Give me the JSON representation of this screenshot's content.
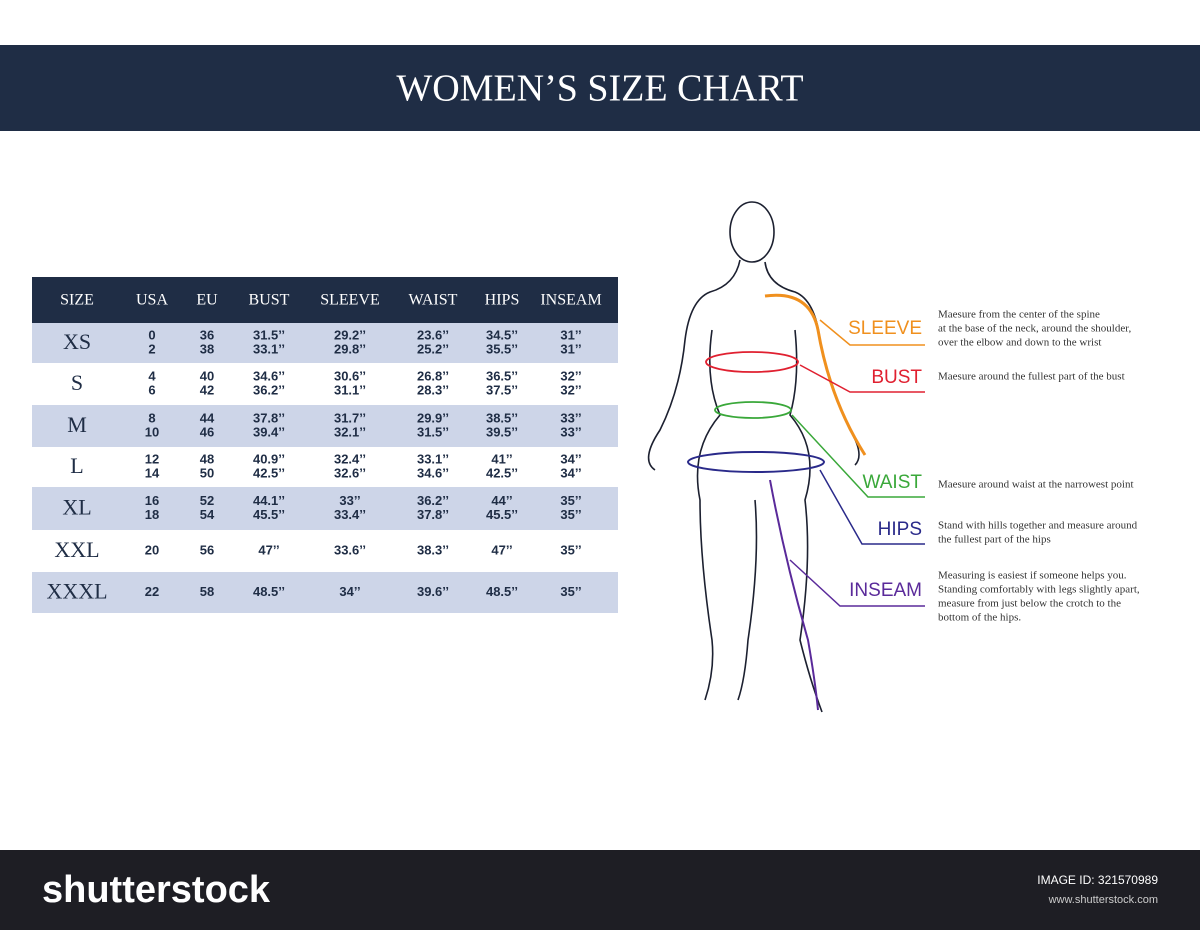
{
  "header": {
    "title": "WOMEN’S SIZE CHART"
  },
  "table": {
    "columns": [
      "SIZE",
      "USA",
      "EU",
      "BUST",
      "SLEEVE",
      "WAIST",
      "HIPS",
      "INSEAM"
    ],
    "rows": [
      {
        "size": "XS",
        "cells": [
          [
            "0",
            "2"
          ],
          [
            "36",
            "38"
          ],
          [
            "31.5’’",
            "33.1’’"
          ],
          [
            "29.2’’",
            "29.8’’"
          ],
          [
            "23.6’’",
            "25.2’’"
          ],
          [
            "34.5’’",
            "35.5’’"
          ],
          [
            "31’’",
            "31’’"
          ]
        ]
      },
      {
        "size": "S",
        "cells": [
          [
            "4",
            "6"
          ],
          [
            "40",
            "42"
          ],
          [
            "34.6’’",
            "36.2’’"
          ],
          [
            "30.6’’",
            "31.1’’"
          ],
          [
            "26.8’’",
            "28.3’’"
          ],
          [
            "36.5’’",
            "37.5’’"
          ],
          [
            "32’’",
            "32’’"
          ]
        ]
      },
      {
        "size": "M",
        "cells": [
          [
            "8",
            "10"
          ],
          [
            "44",
            "46"
          ],
          [
            "37.8’’",
            "39.4’’"
          ],
          [
            "31.7’’",
            "32.1’’"
          ],
          [
            "29.9’’",
            "31.5’’"
          ],
          [
            "38.5’’",
            "39.5’’"
          ],
          [
            "33’’",
            "33’’"
          ]
        ]
      },
      {
        "size": "L",
        "cells": [
          [
            "12",
            "14"
          ],
          [
            "48",
            "50"
          ],
          [
            "40.9’’",
            "42.5’’"
          ],
          [
            "32.4’’",
            "32.6’’"
          ],
          [
            "33.1’’",
            "34.6’’"
          ],
          [
            "41’’",
            "42.5’’"
          ],
          [
            "34’’",
            "34’’"
          ]
        ]
      },
      {
        "size": "XL",
        "cells": [
          [
            "16",
            "18"
          ],
          [
            "52",
            "54"
          ],
          [
            "44.1’’",
            "45.5’’"
          ],
          [
            "33’’",
            "33.4’’"
          ],
          [
            "36.2’’",
            "37.8’’"
          ],
          [
            "44’’",
            "45.5’’"
          ],
          [
            "35’’",
            "35’’"
          ]
        ]
      },
      {
        "size": "XXL",
        "cells": [
          [
            "20"
          ],
          [
            "56"
          ],
          [
            "47’’"
          ],
          [
            "33.6’’"
          ],
          [
            "38.3’’"
          ],
          [
            "47’’"
          ],
          [
            "35’’"
          ]
        ]
      },
      {
        "size": "XXXL",
        "cells": [
          [
            "22"
          ],
          [
            "58"
          ],
          [
            "48.5’’"
          ],
          [
            "34’’"
          ],
          [
            "39.6’’"
          ],
          [
            "48.5’’"
          ],
          [
            "35’’"
          ]
        ]
      }
    ]
  },
  "measurements": [
    {
      "label": "SLEEVE",
      "description": [
        "Maesure from the center of the spine",
        "at the base of the neck, around the shoulder,",
        "over the elbow and down to the wrist"
      ]
    },
    {
      "label": "BUST",
      "description": [
        "Maesure around the fullest part of the bust"
      ]
    },
    {
      "label": "WAIST",
      "description": [
        "Maesure around waist at the narrowest point"
      ]
    },
    {
      "label": "HIPS",
      "description": [
        "Stand with hills together and measure around",
        "the fullest part of the hips"
      ]
    },
    {
      "label": "INSEAM",
      "description": [
        "Measuring is easiest if someone helps you.",
        "Standing comfortably with legs slightly apart,",
        "measure from just below the crotch to the",
        "bottom of the hips."
      ]
    }
  ],
  "footer": {
    "brand": "shutterstock",
    "image_id": "IMAGE ID: 321570989",
    "website": "www.shutterstock.com"
  }
}
